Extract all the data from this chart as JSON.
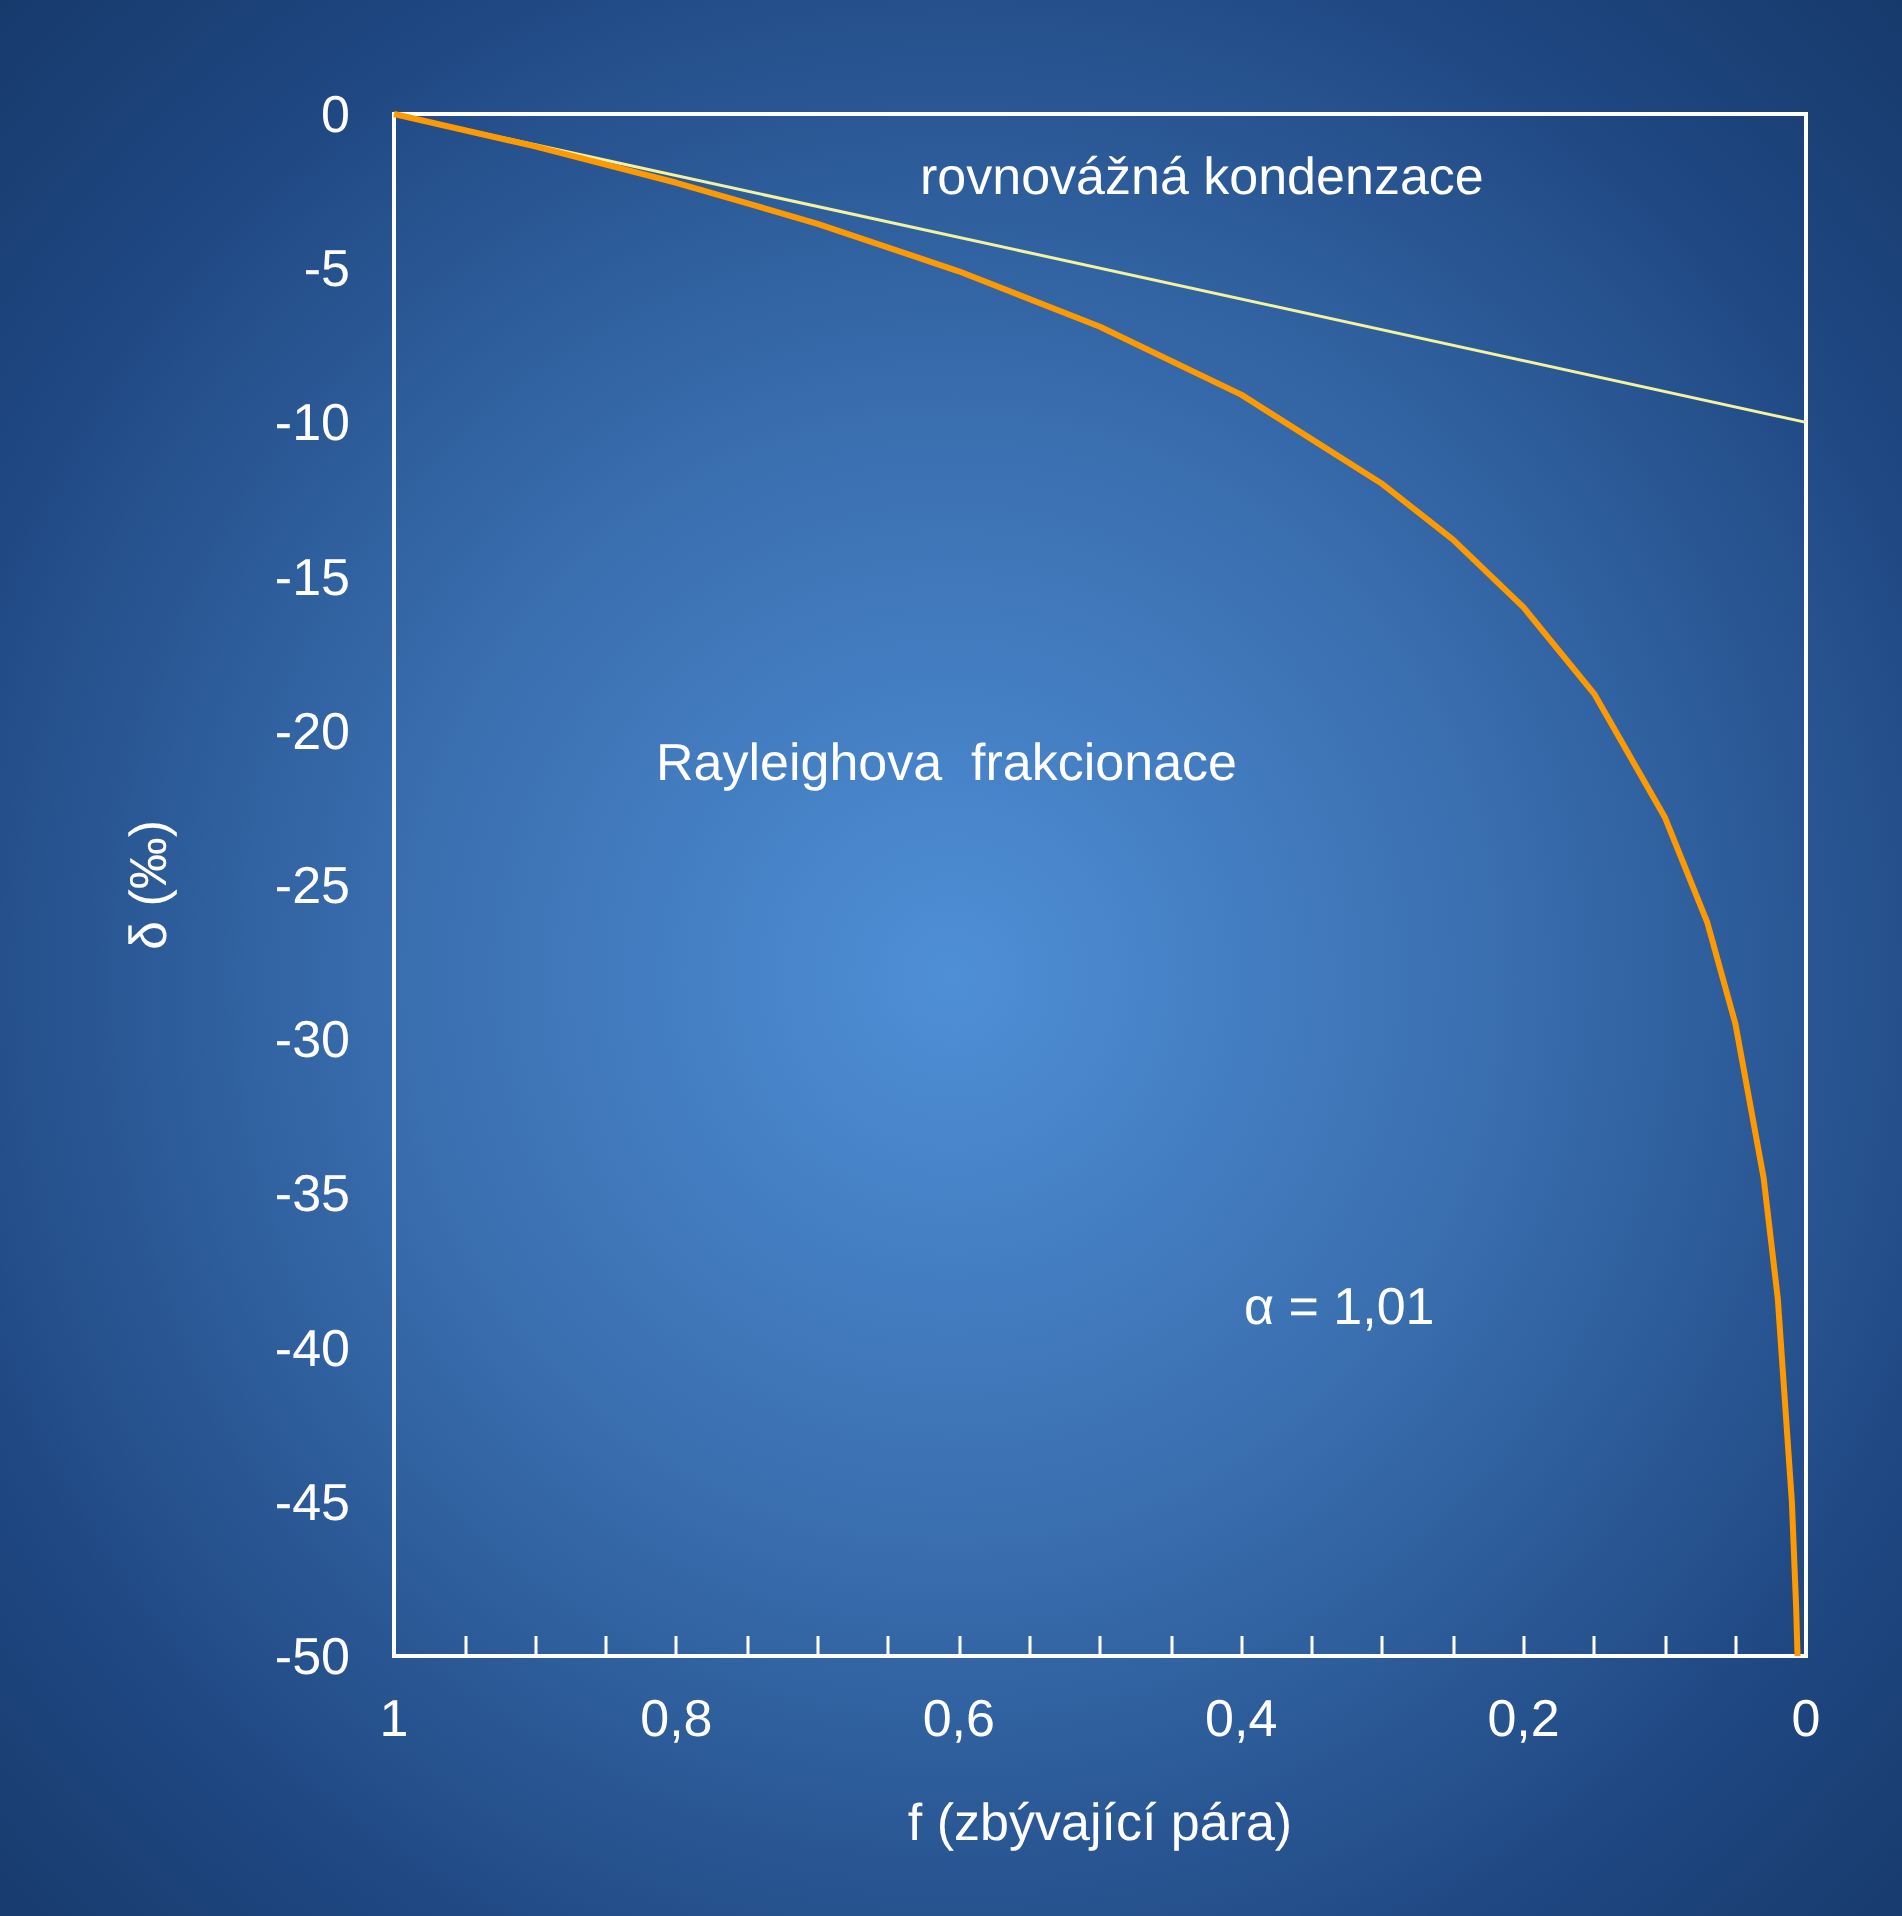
{
  "chart_data": {
    "type": "line",
    "xlabel": "f (zbývající pára)",
    "ylabel": "δ (‰)",
    "xlim": [
      1,
      0
    ],
    "ylim": [
      -50,
      0
    ],
    "xticks": [
      1,
      {
        "value": 0.95,
        "label": null
      },
      {
        "value": 0.9,
        "label": null
      },
      {
        "value": 0.85,
        "label": null
      },
      {
        "value": 0.8,
        "label": "0,8"
      },
      {
        "value": 0.75,
        "label": null
      },
      {
        "value": 0.7,
        "label": null
      },
      {
        "value": 0.65,
        "label": null
      },
      {
        "value": 0.6,
        "label": "0,6"
      },
      {
        "value": 0.55,
        "label": null
      },
      {
        "value": 0.5,
        "label": null
      },
      {
        "value": 0.45,
        "label": null
      },
      {
        "value": 0.4,
        "label": "0,4"
      },
      {
        "value": 0.35,
        "label": null
      },
      {
        "value": 0.3,
        "label": null
      },
      {
        "value": 0.25,
        "label": null
      },
      {
        "value": 0.2,
        "label": "0,2"
      },
      {
        "value": 0.15,
        "label": null
      },
      {
        "value": 0.1,
        "label": null
      },
      {
        "value": 0.05,
        "label": null
      },
      0
    ],
    "yticks": [
      -50,
      -45,
      -40,
      -35,
      -30,
      -25,
      -20,
      -15,
      -10,
      -5,
      0
    ],
    "series": [
      {
        "color": "#f2f2a0",
        "x": [
          1,
          0
        ],
        "values": [
          0,
          -10
        ]
      },
      {
        "color": "#ff9900",
        "x": [
          1,
          0.9,
          0.8,
          0.7,
          0.6,
          0.5,
          0.4,
          0.3,
          0.25,
          0.2,
          0.15,
          0.1,
          0.07,
          0.05,
          0.03,
          0.02,
          0.01,
          0.007,
          0.006
        ],
        "values": [
          0,
          -1.05,
          -2.23,
          -3.56,
          -5.1,
          -6.9,
          -9.1,
          -12,
          -13.8,
          -16,
          -18.8,
          -22.8,
          -26.2,
          -29.5,
          -34.5,
          -38.4,
          -45,
          -48.4,
          -50
        ]
      }
    ],
    "annotations": [
      "rovnovážná kondenzace",
      "Rayleighova  frakcionace",
      "α = 1,01"
    ],
    "grid": false,
    "marker": "none",
    "line_style": "solid"
  }
}
